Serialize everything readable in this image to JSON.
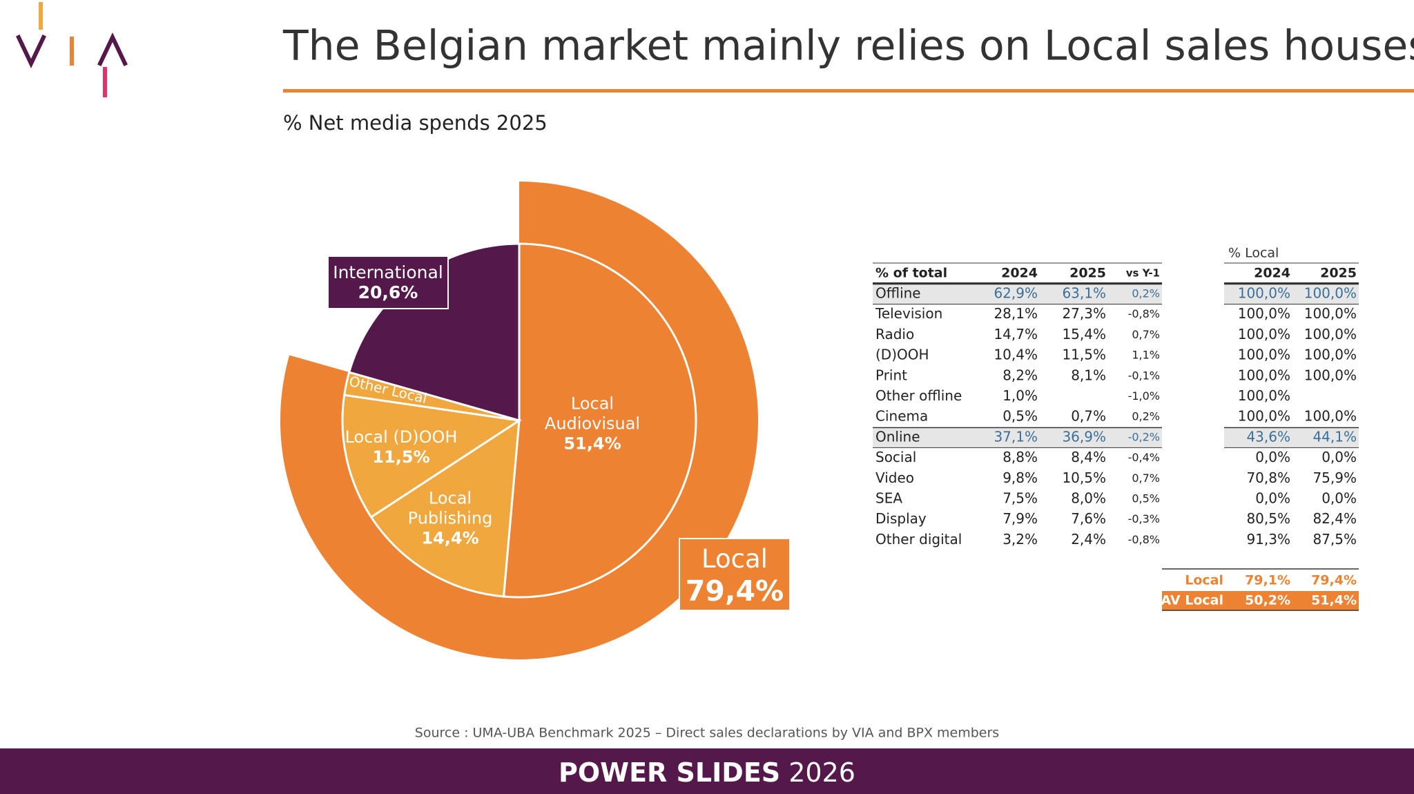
{
  "header": {
    "title": "The Belgian market mainly relies on Local sales houses"
  },
  "chart_data": {
    "type": "pie",
    "title": "% Net media spends 2025",
    "categories": [
      "Local Audiovisual",
      "Local Publishing",
      "Local (D)OOH",
      "Other Local",
      "International"
    ],
    "values": [
      51.4,
      14.4,
      11.5,
      2.1,
      20.6
    ],
    "value_labels": [
      "51,4%",
      "14,4%",
      "11,5%",
      null,
      "20,6%"
    ],
    "colors": [
      "#ed8233",
      "#f0a73e",
      "#f0a73e",
      "#f0a73e",
      "#54184b"
    ],
    "outer_ring": {
      "label": "Local",
      "value": 79.4,
      "value_label": "79,4%",
      "color": "#ed8233"
    }
  },
  "table": {
    "columns": [
      "% of total",
      "2024",
      "2025",
      "vs Y-1",
      "2024",
      "2025"
    ],
    "group_label": "% Local",
    "highlighted_rows": [
      0,
      7
    ],
    "rows": [
      [
        "Offline",
        "62,9%",
        "63,1%",
        "0,2%",
        "100,0%",
        "100,0%"
      ],
      [
        "Television",
        "28,1%",
        "27,3%",
        "-0,8%",
        "100,0%",
        "100,0%"
      ],
      [
        "Radio",
        "14,7%",
        "15,4%",
        "0,7%",
        "100,0%",
        "100,0%"
      ],
      [
        "(D)OOH",
        "10,4%",
        "11,5%",
        "1,1%",
        "100,0%",
        "100,0%"
      ],
      [
        "Print",
        "8,2%",
        "8,1%",
        "-0,1%",
        "100,0%",
        "100,0%"
      ],
      [
        "Other offline",
        "1,0%",
        null,
        "-1,0%",
        "100,0%",
        null
      ],
      [
        "Cinema",
        "0,5%",
        "0,7%",
        "0,2%",
        "100,0%",
        "100,0%"
      ],
      [
        "Online",
        "37,1%",
        "36,9%",
        "-0,2%",
        "43,6%",
        "44,1%"
      ],
      [
        "Social",
        "8,8%",
        "8,4%",
        "-0,4%",
        "0,0%",
        "0,0%"
      ],
      [
        "Video",
        "9,8%",
        "10,5%",
        "0,7%",
        "70,8%",
        "75,9%"
      ],
      [
        "SEA",
        "7,5%",
        "8,0%",
        "0,5%",
        "0,0%",
        "0,0%"
      ],
      [
        "Display",
        "7,9%",
        "7,6%",
        "-0,3%",
        "80,5%",
        "82,4%"
      ],
      [
        "Other digital",
        "3,2%",
        "2,4%",
        "-0,8%",
        "91,3%",
        "87,5%"
      ]
    ],
    "summary": [
      [
        "Local",
        "79,1%",
        "79,4%"
      ],
      [
        "AV Local",
        "50,2%",
        "51,4%"
      ]
    ]
  },
  "source": "Source : UMA-UBA Benchmark 2025 – Direct sales declarations by VIA and BPX members",
  "footer": {
    "label": "POWER SLIDES",
    "year": "2026"
  }
}
